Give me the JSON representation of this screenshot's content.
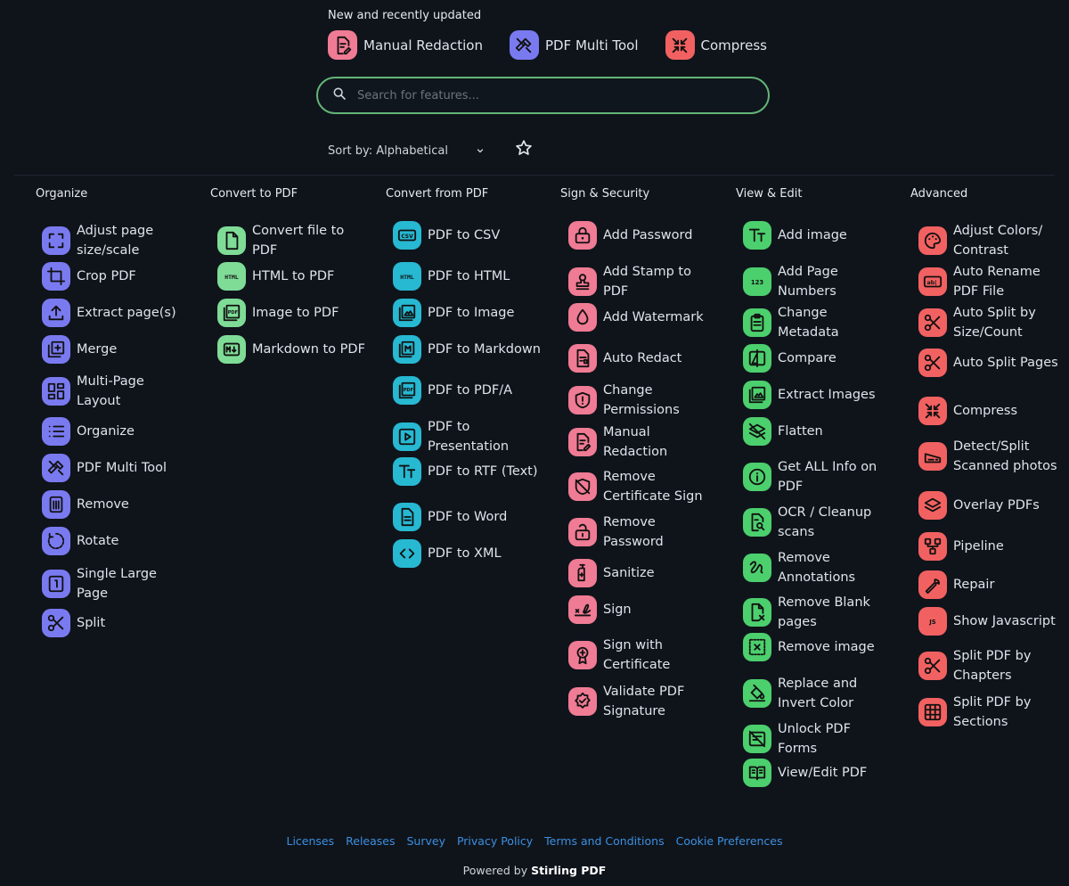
{
  "recent": {
    "title": "New and recently updated",
    "items": [
      {
        "label": "Manual Redaction",
        "icon": "edit-document-icon",
        "color": "#f07b94"
      },
      {
        "label": "PDF Multi Tool",
        "icon": "tools-icon",
        "color": "#7a7af0"
      },
      {
        "label": "Compress",
        "icon": "compress-icon",
        "color": "#f26161"
      }
    ]
  },
  "search": {
    "placeholder": "Search for features..."
  },
  "sort": {
    "label": "Sort by: Alphabetical"
  },
  "columns": [
    {
      "title": "Organize",
      "color": "#7a7af0",
      "items": [
        {
          "label": "Adjust page size/scale",
          "icon": "fullscreen-icon"
        },
        {
          "label": "Crop PDF",
          "icon": "crop-icon"
        },
        {
          "label": "Extract page(s)",
          "icon": "upload-icon"
        },
        {
          "label": "Merge",
          "icon": "add-box-icon"
        },
        {
          "label": "Multi-Page Layout",
          "icon": "grid-icon"
        },
        {
          "label": "Organize",
          "icon": "list-icon"
        },
        {
          "label": "PDF Multi Tool",
          "icon": "tools-icon"
        },
        {
          "label": "Remove",
          "icon": "trash-icon"
        },
        {
          "label": "Rotate",
          "icon": "rotate-icon"
        },
        {
          "label": "Single Large Page",
          "icon": "page-one-icon"
        },
        {
          "label": "Split",
          "icon": "scissors-icon"
        }
      ]
    },
    {
      "title": "Convert to PDF",
      "color": "#7fdc97",
      "items": [
        {
          "label": "Convert file to PDF",
          "icon": "file-icon"
        },
        {
          "label": "HTML to PDF",
          "icon": "html-icon"
        },
        {
          "label": "Image to PDF",
          "icon": "pdf-image-icon"
        },
        {
          "label": "Markdown to PDF",
          "icon": "markdown-icon"
        }
      ]
    },
    {
      "title": "Convert from PDF",
      "color": "#27b8d2",
      "items": [
        {
          "label": "PDF to CSV",
          "icon": "csv-icon"
        },
        {
          "label": "PDF to HTML",
          "icon": "html-icon"
        },
        {
          "label": "PDF to Image",
          "icon": "image-icon"
        },
        {
          "label": "PDF to Markdown",
          "icon": "markdown-m-icon"
        },
        {
          "label": "PDF to PDF/A",
          "icon": "pdf-icon"
        },
        {
          "label": "PDF to Presentation",
          "icon": "presentation-icon"
        },
        {
          "label": "PDF to RTF (Text)",
          "icon": "text-icon"
        },
        {
          "label": "PDF to Word",
          "icon": "document-icon"
        },
        {
          "label": "PDF to XML",
          "icon": "code-icon"
        }
      ]
    },
    {
      "title": "Sign & Security",
      "color": "#f07b94",
      "items": [
        {
          "label": "Add Password",
          "icon": "lock-icon"
        },
        {
          "label": "Add Stamp to PDF",
          "icon": "stamp-icon"
        },
        {
          "label": "Add Watermark",
          "icon": "water-drop-icon"
        },
        {
          "label": "Auto Redact",
          "icon": "redact-file-icon"
        },
        {
          "label": "Change Permissions",
          "icon": "shield-icon"
        },
        {
          "label": "Manual Redaction",
          "icon": "edit-document-icon"
        },
        {
          "label": "Remove Certificate Sign",
          "icon": "shield-off-icon"
        },
        {
          "label": "Remove Password",
          "icon": "unlock-icon"
        },
        {
          "label": "Sanitize",
          "icon": "sanitizer-icon"
        },
        {
          "label": "Sign",
          "icon": "signature-icon"
        },
        {
          "label": "Sign with Certificate",
          "icon": "certificate-icon"
        },
        {
          "label": "Validate PDF Signature",
          "icon": "verified-icon"
        }
      ]
    },
    {
      "title": "View & Edit",
      "color": "#4ccf6d",
      "items": [
        {
          "label": "Add image",
          "icon": "text-icon"
        },
        {
          "label": "Add Page Numbers",
          "icon": "numbers-icon"
        },
        {
          "label": "Change Metadata",
          "icon": "clipboard-icon"
        },
        {
          "label": "Compare",
          "icon": "compare-icon"
        },
        {
          "label": "Extract Images",
          "icon": "image-icon"
        },
        {
          "label": "Flatten",
          "icon": "layers-off-icon"
        },
        {
          "label": "Get ALL Info on PDF",
          "icon": "info-icon"
        },
        {
          "label": "OCR / Cleanup scans",
          "icon": "scan-search-icon"
        },
        {
          "label": "Remove Annotations",
          "icon": "scribble-icon"
        },
        {
          "label": "Remove Blank pages",
          "icon": "blank-page-icon"
        },
        {
          "label": "Remove image",
          "icon": "image-remove-icon"
        },
        {
          "label": "Replace and Invert Color",
          "icon": "paint-bucket-icon"
        },
        {
          "label": "Unlock PDF Forms",
          "icon": "form-unlock-icon"
        },
        {
          "label": "View/Edit PDF",
          "icon": "book-icon"
        }
      ]
    },
    {
      "title": "Advanced",
      "color": "#f26161",
      "items": [
        {
          "label": "Adjust Colors/ Contrast",
          "icon": "palette-icon"
        },
        {
          "label": "Auto Rename PDF File",
          "icon": "rename-icon"
        },
        {
          "label": "Auto Split by Size/Count",
          "icon": "scissors-icon"
        },
        {
          "label": "Auto Split Pages",
          "icon": "scissors-icon"
        },
        {
          "label": "Compress",
          "icon": "compress-icon"
        },
        {
          "label": "Detect/Split Scanned photos",
          "icon": "scanner-icon"
        },
        {
          "label": "Overlay PDFs",
          "icon": "layers-icon"
        },
        {
          "label": "Pipeline",
          "icon": "workflow-icon"
        },
        {
          "label": "Repair",
          "icon": "wrench-icon"
        },
        {
          "label": "Show Javascript",
          "icon": "javascript-icon"
        },
        {
          "label": "Split PDF by Chapters",
          "icon": "scissors-icon"
        },
        {
          "label": "Split PDF by Sections",
          "icon": "grid-sections-icon"
        }
      ]
    }
  ],
  "footer": {
    "links": [
      "Licenses",
      "Releases",
      "Survey",
      "Privacy Policy",
      "Terms and Conditions",
      "Cookie Preferences"
    ],
    "powered_prefix": "Powered by",
    "powered_brand": "Stirling PDF"
  }
}
